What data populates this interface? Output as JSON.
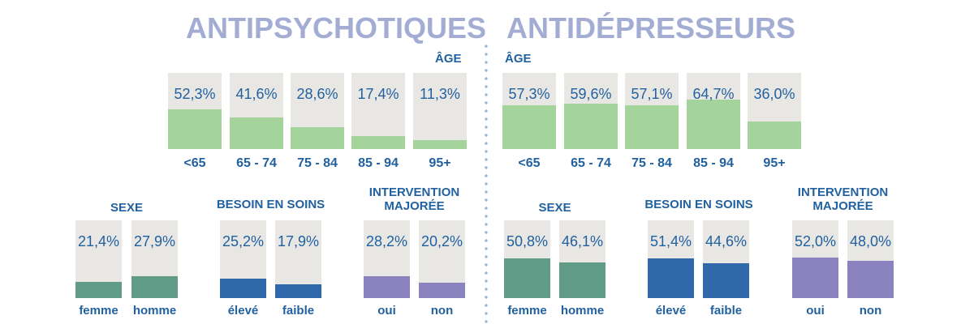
{
  "colors": {
    "title": "#a3add4",
    "label": "#2261a0",
    "bar_bg": "#e9e7e3",
    "age": "#a4d39b",
    "sexe": "#609b88",
    "soins": "#2f69ac",
    "intervention": "#8a83c0"
  },
  "chart_data": [
    {
      "type": "bar",
      "panel": "antipsychotiques",
      "group": "age",
      "title": "ANTIPSYCHOTIQUES",
      "subtitle": "ÂGE",
      "ylim": [
        0,
        100
      ],
      "categories": [
        "<65",
        "65 - 74",
        "75 - 84",
        "85 - 94",
        "95+"
      ],
      "values": [
        52.3,
        41.6,
        28.6,
        17.4,
        11.3
      ],
      "labels": [
        "52,3%",
        "41,6%",
        "28,6%",
        "17,4%",
        "11,3%"
      ]
    },
    {
      "type": "bar",
      "panel": "antipsychotiques",
      "group": "sexe",
      "title_lines": [
        "SEXE"
      ],
      "ylim": [
        0,
        100
      ],
      "categories": [
        "femme",
        "homme"
      ],
      "values": [
        21.4,
        27.9
      ],
      "labels": [
        "21,4%",
        "27,9%"
      ]
    },
    {
      "type": "bar",
      "panel": "antipsychotiques",
      "group": "soins",
      "title_lines": [
        "BESOIN EN SOINS"
      ],
      "ylim": [
        0,
        100
      ],
      "categories": [
        "élevé",
        "faible"
      ],
      "values": [
        25.2,
        17.9
      ],
      "labels": [
        "25,2%",
        "17,9%"
      ]
    },
    {
      "type": "bar",
      "panel": "antipsychotiques",
      "group": "intervention",
      "title_lines": [
        "INTERVENTION",
        "MAJORÉE"
      ],
      "ylim": [
        0,
        100
      ],
      "categories": [
        "oui",
        "non"
      ],
      "values": [
        28.2,
        20.2
      ],
      "labels": [
        "28,2%",
        "20,2%"
      ]
    },
    {
      "type": "bar",
      "panel": "antidepresseurs",
      "group": "age",
      "title": "ANTIDÉPRESSEURS",
      "subtitle": "ÂGE",
      "ylim": [
        0,
        100
      ],
      "categories": [
        "<65",
        "65 - 74",
        "75 - 84",
        "85 - 94",
        "95+"
      ],
      "values": [
        57.3,
        59.6,
        57.1,
        64.7,
        36.0
      ],
      "labels": [
        "57,3%",
        "59,6%",
        "57,1%",
        "64,7%",
        "36,0%"
      ]
    },
    {
      "type": "bar",
      "panel": "antidepresseurs",
      "group": "sexe",
      "title_lines": [
        "SEXE"
      ],
      "ylim": [
        0,
        100
      ],
      "categories": [
        "femme",
        "homme"
      ],
      "values": [
        50.8,
        46.1
      ],
      "labels": [
        "50,8%",
        "46,1%"
      ]
    },
    {
      "type": "bar",
      "panel": "antidepresseurs",
      "group": "soins",
      "title_lines": [
        "BESOIN EN SOINS"
      ],
      "ylim": [
        0,
        100
      ],
      "categories": [
        "élevé",
        "faible"
      ],
      "values": [
        51.4,
        44.6
      ],
      "labels": [
        "51,4%",
        "44,6%"
      ]
    },
    {
      "type": "bar",
      "panel": "antidepresseurs",
      "group": "intervention",
      "title_lines": [
        "INTERVENTION",
        "MAJORÉE"
      ],
      "ylim": [
        0,
        100
      ],
      "categories": [
        "oui",
        "non"
      ],
      "values": [
        52.0,
        48.0
      ],
      "labels": [
        "52,0%",
        "48,0%"
      ]
    }
  ]
}
